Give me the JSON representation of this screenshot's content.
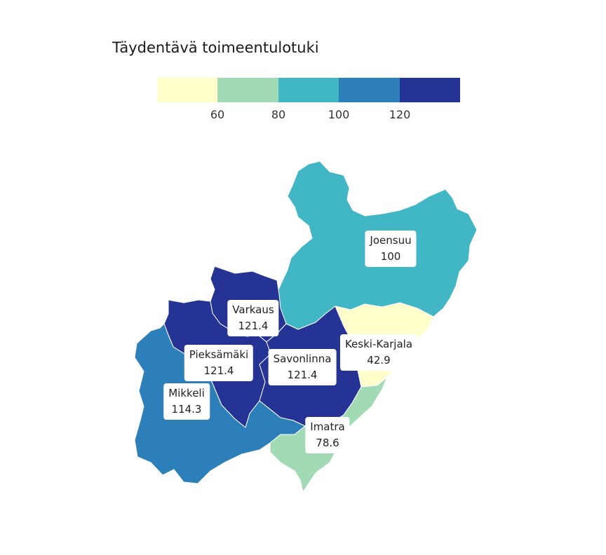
{
  "title": "Täydentävä toimeentulotuki",
  "legend": {
    "colors": [
      "#ffffcc",
      "#a1dab4",
      "#41b6c4",
      "#2c7fb8",
      "#253494"
    ],
    "ticks": [
      "60",
      "80",
      "100",
      "120"
    ]
  },
  "regions": [
    {
      "name": "Joensuu",
      "value": "100",
      "color": "#41b6c4"
    },
    {
      "name": "Varkaus",
      "value": "121.4",
      "color": "#253494"
    },
    {
      "name": "Pieksämäki",
      "value": "121.4",
      "color": "#253494"
    },
    {
      "name": "Savonlinna",
      "value": "121.4",
      "color": "#253494"
    },
    {
      "name": "Keski-Karjala",
      "value": "42.9",
      "color": "#ffffcc"
    },
    {
      "name": "Mikkeli",
      "value": "114.3",
      "color": "#2c7fb8"
    },
    {
      "name": "Imatra",
      "value": "78.6",
      "color": "#a1dab4"
    }
  ]
}
